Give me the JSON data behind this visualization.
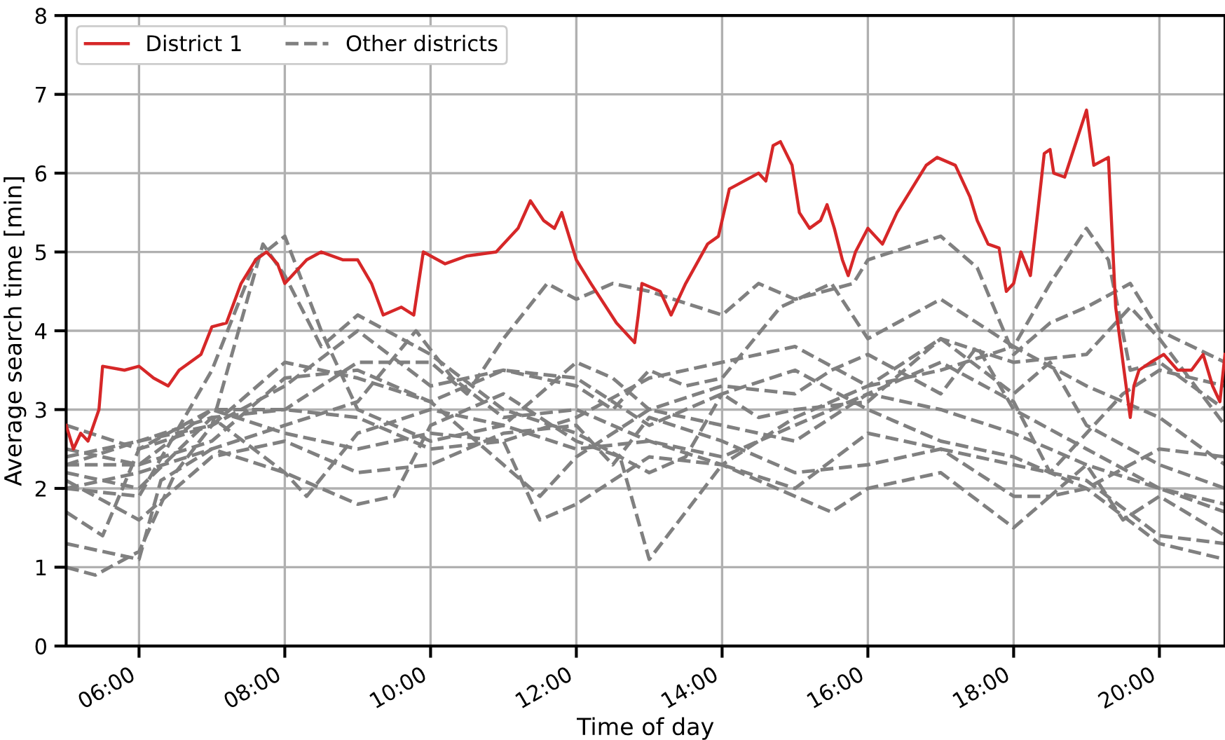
{
  "chart_data": {
    "type": "line",
    "xlabel": "Time of day",
    "ylabel": "Average search time [min]",
    "xlim": [
      5,
      20.9
    ],
    "ylim": [
      0,
      8
    ],
    "yticks": [
      0,
      1,
      2,
      3,
      4,
      5,
      6,
      7,
      8
    ],
    "xticks": [
      {
        "value": 6,
        "label": "06:00"
      },
      {
        "value": 8,
        "label": "08:00"
      },
      {
        "value": 10,
        "label": "10:00"
      },
      {
        "value": 12,
        "label": "12:00"
      },
      {
        "value": 14,
        "label": "14:00"
      },
      {
        "value": 16,
        "label": "16:00"
      },
      {
        "value": 18,
        "label": "18:00"
      },
      {
        "value": 20,
        "label": "20:00"
      }
    ],
    "grid": true,
    "legend": "top left",
    "marker": "none",
    "series": [
      {
        "name": "District 1",
        "color": "#d62728",
        "line_style": "solid",
        "x": [
          5.0,
          5.1,
          5.2,
          5.3,
          5.45,
          5.5,
          5.8,
          6.0,
          6.2,
          6.4,
          6.55,
          6.85,
          7.0,
          7.2,
          7.4,
          7.6,
          7.75,
          7.9,
          8.0,
          8.3,
          8.5,
          8.8,
          9.0,
          9.19,
          9.35,
          9.6,
          9.77,
          9.9,
          10.2,
          10.5,
          10.9,
          11.2,
          11.37,
          11.55,
          11.7,
          11.8,
          12.0,
          12.2,
          12.55,
          12.8,
          12.85,
          12.9,
          13.15,
          13.3,
          13.5,
          13.8,
          13.95,
          14.1,
          14.3,
          14.5,
          14.6,
          14.7,
          14.8,
          14.96,
          15.06,
          15.2,
          15.35,
          15.44,
          15.54,
          15.65,
          15.73,
          15.83,
          16.0,
          16.2,
          16.4,
          16.6,
          16.8,
          16.95,
          17.2,
          17.4,
          17.5,
          17.65,
          17.8,
          17.9,
          18.0,
          18.1,
          18.23,
          18.33,
          18.42,
          18.5,
          18.55,
          18.7,
          19.0,
          19.1,
          19.3,
          19.4,
          19.6,
          19.65,
          19.72,
          19.88,
          20.06,
          20.25,
          20.44,
          20.6,
          20.73,
          20.83,
          20.9
        ],
        "values": [
          2.8,
          2.5,
          2.7,
          2.6,
          3.0,
          3.55,
          3.5,
          3.55,
          3.4,
          3.3,
          3.5,
          3.7,
          4.05,
          4.1,
          4.6,
          4.9,
          5.0,
          4.85,
          4.6,
          4.9,
          5.0,
          4.9,
          4.9,
          4.6,
          4.2,
          4.3,
          4.2,
          5.0,
          4.85,
          4.95,
          5.0,
          5.3,
          5.65,
          5.4,
          5.3,
          5.5,
          4.9,
          4.6,
          4.1,
          3.85,
          4.2,
          4.6,
          4.5,
          4.2,
          4.6,
          5.1,
          5.2,
          5.8,
          5.9,
          6.0,
          5.9,
          6.35,
          6.4,
          6.1,
          5.5,
          5.3,
          5.4,
          5.6,
          5.3,
          4.9,
          4.7,
          5.0,
          5.3,
          5.1,
          5.5,
          5.8,
          6.1,
          6.2,
          6.1,
          5.7,
          5.4,
          5.1,
          5.05,
          4.5,
          4.6,
          5.0,
          4.7,
          5.5,
          6.25,
          6.3,
          6.0,
          5.95,
          6.8,
          6.1,
          6.2,
          4.3,
          2.9,
          3.3,
          3.5,
          3.6,
          3.7,
          3.5,
          3.5,
          3.7,
          3.3,
          3.1,
          3.7
        ]
      },
      {
        "name": "Other districts",
        "color": "#808080",
        "line_style": "dashed",
        "x": [
          5,
          6,
          7,
          7.6,
          8,
          8.5,
          9,
          10,
          11,
          12,
          13,
          14,
          15,
          16,
          17,
          18,
          19,
          20,
          20.9
        ],
        "values": [
          2.0,
          1.9,
          3.5,
          4.9,
          5.2,
          4.0,
          3.0,
          2.6,
          2.8,
          2.5,
          2.6,
          2.4,
          2.8,
          3.2,
          3.0,
          2.7,
          2.3,
          2.0,
          1.7
        ]
      },
      {
        "color": "#808080",
        "line_style": "dashed",
        "x": [
          5,
          5.4,
          6,
          6.5,
          7,
          7.7,
          8,
          8.5,
          9,
          10,
          11,
          12,
          13,
          13.5,
          14,
          15,
          16,
          17,
          18,
          19,
          20,
          20.9
        ],
        "values": [
          1.0,
          0.9,
          1.2,
          2.2,
          2.8,
          5.1,
          4.7,
          3.8,
          4.2,
          3.7,
          3.0,
          2.7,
          2.2,
          2.4,
          3.2,
          3.5,
          3.0,
          2.6,
          2.4,
          2.0,
          1.3,
          1.1
        ]
      },
      {
        "color": "#808080",
        "line_style": "dashed",
        "x": [
          5,
          6,
          7,
          8,
          9,
          10,
          10.5,
          11,
          11.6,
          12,
          12.5,
          13,
          14,
          14.5,
          15,
          15.8,
          16,
          17,
          17.5,
          18,
          18.5,
          19,
          19.6,
          20,
          20.9
        ],
        "values": [
          2.3,
          2.6,
          2.9,
          3.0,
          3.6,
          3.6,
          3.2,
          3.9,
          4.6,
          4.4,
          4.6,
          4.5,
          4.2,
          4.6,
          4.4,
          4.6,
          4.9,
          5.2,
          4.8,
          3.7,
          4.1,
          4.3,
          4.6,
          4.0,
          3.6
        ]
      },
      {
        "color": "#808080",
        "line_style": "dashed",
        "x": [
          5,
          6,
          7,
          8,
          9,
          10,
          11,
          12,
          12.5,
          13,
          13.5,
          14,
          14.8,
          15.5,
          16,
          17,
          18,
          18.5,
          19,
          19.3,
          19.6,
          20,
          20.9
        ],
        "values": [
          2.8,
          2.5,
          2.8,
          3.3,
          4.0,
          3.3,
          3.5,
          3.3,
          3.0,
          3.5,
          3.3,
          3.4,
          4.3,
          4.6,
          3.9,
          4.4,
          3.8,
          4.6,
          5.3,
          4.9,
          3.5,
          3.6,
          3.0
        ]
      },
      {
        "color": "#808080",
        "line_style": "dashed",
        "x": [
          5,
          6,
          7,
          8,
          9,
          10,
          11,
          12,
          12.5,
          13,
          14,
          15,
          16,
          17,
          18,
          18.5,
          19,
          19.5,
          20,
          20.9
        ],
        "values": [
          2.1,
          1.6,
          2.4,
          2.6,
          2.2,
          2.3,
          2.7,
          2.8,
          2.3,
          2.9,
          2.6,
          2.2,
          2.3,
          2.5,
          1.9,
          1.9,
          2.3,
          1.6,
          1.9,
          1.4
        ]
      },
      {
        "color": "#808080",
        "line_style": "dashed",
        "x": [
          5,
          6,
          6.3,
          7,
          8,
          9,
          9.5,
          10,
          11,
          12,
          12.6,
          13,
          13.5,
          14,
          15,
          16,
          17,
          18,
          19,
          20,
          20.9
        ],
        "values": [
          1.3,
          1.1,
          2.1,
          2.5,
          2.2,
          1.8,
          1.9,
          2.8,
          3.2,
          2.6,
          2.4,
          1.1,
          1.7,
          2.3,
          2.0,
          2.7,
          2.5,
          2.3,
          2.1,
          1.4,
          1.3
        ]
      },
      {
        "color": "#808080",
        "line_style": "dashed",
        "x": [
          5,
          6,
          7,
          8,
          9,
          10,
          11,
          11.5,
          12,
          13,
          14,
          15,
          16,
          17,
          18,
          18.5,
          19,
          19.5,
          20,
          20.9
        ],
        "values": [
          2.4,
          2.6,
          2.8,
          3.6,
          3.4,
          3.1,
          2.3,
          1.9,
          2.4,
          3.0,
          2.8,
          2.6,
          3.2,
          3.6,
          3.1,
          2.2,
          2.7,
          3.2,
          3.5,
          3.3
        ]
      },
      {
        "color": "#808080",
        "line_style": "dashed",
        "x": [
          5,
          6,
          7,
          8,
          9,
          9.8,
          10.3,
          11,
          12,
          13,
          14,
          15,
          15.5,
          16,
          17,
          18,
          18.5,
          19,
          20,
          20.9
        ],
        "values": [
          2.0,
          2.2,
          2.5,
          2.8,
          3.1,
          4.0,
          3.4,
          2.9,
          3.0,
          2.6,
          2.3,
          1.9,
          1.7,
          2.0,
          2.2,
          1.5,
          1.9,
          2.0,
          2.5,
          2.4
        ]
      },
      {
        "color": "#808080",
        "line_style": "dashed",
        "x": [
          5,
          6,
          7,
          8,
          9,
          10,
          11,
          12,
          13,
          14,
          14.5,
          15,
          16,
          17,
          18,
          19,
          19.6,
          20,
          20.9
        ],
        "values": [
          2.5,
          2.3,
          2.6,
          3.4,
          3.5,
          3.1,
          3.5,
          3.4,
          2.8,
          3.2,
          2.9,
          3.0,
          3.1,
          3.9,
          3.6,
          3.7,
          4.3,
          3.9,
          2.8
        ]
      },
      {
        "color": "#808080",
        "line_style": "dashed",
        "x": [
          5,
          5.5,
          6,
          7,
          8,
          9,
          10,
          11,
          11.5,
          12,
          13,
          14,
          15,
          16,
          17,
          18,
          18.5,
          19,
          20,
          20.9
        ],
        "values": [
          1.7,
          1.4,
          2.5,
          3.0,
          2.7,
          2.5,
          2.7,
          2.6,
          1.6,
          1.8,
          2.4,
          2.3,
          2.9,
          3.3,
          3.9,
          3.2,
          3.6,
          2.8,
          2.3,
          2.0
        ]
      },
      {
        "color": "#808080",
        "line_style": "dashed",
        "x": [
          5,
          6,
          7,
          8,
          8.3,
          9,
          10,
          11,
          12,
          12.5,
          13,
          14,
          15,
          15.5,
          16,
          17,
          17.5,
          18,
          19,
          20,
          20.9
        ],
        "values": [
          2.2,
          2.0,
          2.9,
          2.2,
          1.9,
          2.7,
          3.0,
          2.8,
          3.6,
          3.4,
          3.0,
          3.3,
          3.2,
          3.5,
          3.7,
          3.2,
          3.8,
          3.0,
          2.5,
          2.0,
          1.8
        ]
      },
      {
        "color": "#808080",
        "line_style": "dashed",
        "x": [
          5,
          6,
          7,
          8,
          9,
          10,
          11,
          12,
          13,
          14,
          15,
          16,
          17,
          18,
          19,
          20,
          20.9
        ],
        "values": [
          2.3,
          2.3,
          3.0,
          3.0,
          2.9,
          2.5,
          2.6,
          2.9,
          3.4,
          3.6,
          3.8,
          3.3,
          3.5,
          3.8,
          3.3,
          2.9,
          2.3
        ]
      }
    ]
  }
}
